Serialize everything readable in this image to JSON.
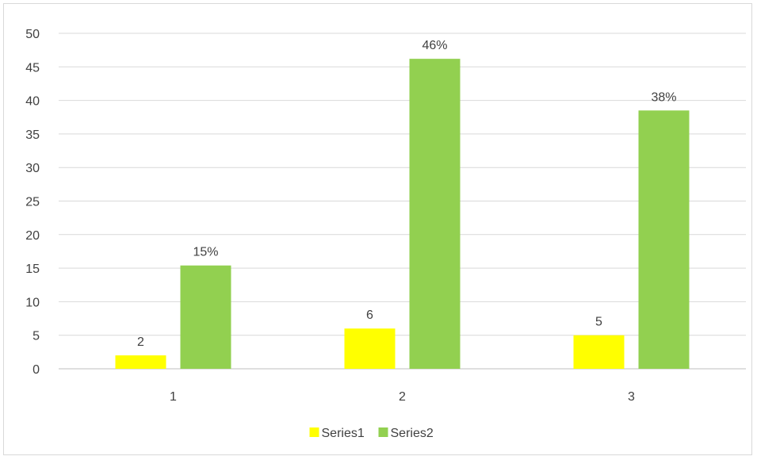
{
  "chart_data": {
    "type": "bar",
    "title": "",
    "xlabel": "",
    "ylabel": "",
    "categories": [
      "1",
      "2",
      "3"
    ],
    "ylim": [
      0,
      50
    ],
    "yticks": [
      0,
      5,
      10,
      15,
      20,
      25,
      30,
      35,
      40,
      45,
      50
    ],
    "grid": true,
    "legend_position": "bottom",
    "series": [
      {
        "name": "Series1",
        "color": "#ffff00",
        "values": [
          2,
          6,
          5
        ],
        "labels": [
          "2",
          "6",
          "5"
        ]
      },
      {
        "name": "Series2",
        "color": "#92d050",
        "values": [
          15.4,
          46.2,
          38.5
        ],
        "labels": [
          "15%",
          "46%",
          "38%"
        ]
      }
    ]
  }
}
